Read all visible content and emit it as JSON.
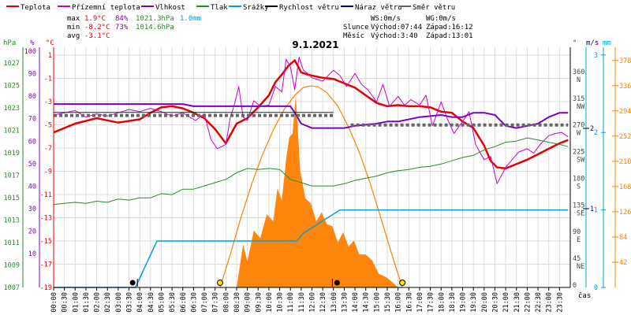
{
  "chart_data": {
    "type": "line",
    "title": "9.1.2021",
    "colors": {
      "temperature": "#e60000",
      "ground_temperature": "#cc00cc",
      "humidity": "#8000c0",
      "pressure": "#2a8a2a",
      "precipitation": "#00a0e0",
      "wind_speed": "#000000",
      "wind_gust": "#00008b",
      "wind_direction": "#666666",
      "solar": "#ff8000",
      "grid": "#dddddd"
    },
    "legend": [
      {
        "label": "Teplota",
        "color": "#e60000"
      },
      {
        "label": "Přízemní teplota",
        "color": "#cc00cc"
      },
      {
        "label": "Vlhkost",
        "color": "#8000c0"
      },
      {
        "label": "Tlak",
        "color": "#2a8a2a"
      },
      {
        "label": "Srážky",
        "color": "#00a0e0"
      },
      {
        "label": "Rychlost větru",
        "color": "#000000"
      },
      {
        "label": "Náraz větru",
        "color": "#00008b"
      },
      {
        "label": "Směr větru",
        "color": "#666666"
      }
    ],
    "stats": {
      "max": {
        "label": "max",
        "temp": "1.9°C",
        "hum": "84%",
        "press": "1021.3hPa",
        "rain": "1.0mm"
      },
      "min": {
        "label": "min",
        "temp": "-8.2°C",
        "hum": "73%",
        "press": "1014.6hPa"
      },
      "avg": {
        "label": "avg",
        "temp": "-3.1°C"
      }
    },
    "sun_info": {
      "ws": "WS:0m/s",
      "wg": "WG:0m/s",
      "sun_label": "Slunce",
      "sun_rise": "Východ:07:44",
      "sun_set": "Západ:16:12",
      "moon_label": "Měsíc",
      "moon_rise": "Východ:3:40",
      "moon_set": "Západ:13:01"
    },
    "axes": {
      "time_unit": "čas",
      "x_ticks": [
        "00:00",
        "00:30",
        "01:00",
        "01:30",
        "02:00",
        "02:30",
        "03:00",
        "03:30",
        "04:00",
        "04:30",
        "05:00",
        "05:30",
        "06:00",
        "06:30",
        "07:00",
        "07:30",
        "08:00",
        "08:30",
        "09:00",
        "09:30",
        "10:00",
        "10:30",
        "11:00",
        "11:30",
        "12:00",
        "12:30",
        "13:00",
        "13:30",
        "14:00",
        "14:30",
        "15:00",
        "15:30",
        "16:00",
        "16:30",
        "17:00",
        "17:30",
        "18:00",
        "18:30",
        "19:00",
        "19:30",
        "20:00",
        "20:30",
        "21:00",
        "21:30",
        "22:00",
        "22:30",
        "23:00",
        "23:30"
      ],
      "hpa": {
        "unit": "hPa",
        "ticks": [
          "1027",
          "1025",
          "1023",
          "1021",
          "1019",
          "1017",
          "1015",
          "1013",
          "1011",
          "1009",
          "1007"
        ]
      },
      "pct": {
        "unit": "%",
        "ticks": [
          "100",
          "90",
          "80",
          "70",
          "60",
          "50",
          "40",
          "30",
          "20",
          "10"
        ]
      },
      "degc": {
        "unit": "°C",
        "ticks": [
          "1",
          "-1",
          "-3",
          "-5",
          "-7",
          "-9",
          "-11",
          "-13",
          "-15",
          "-17",
          "-19"
        ]
      },
      "deg": {
        "unit": "°",
        "ticks": [
          "360",
          "315",
          "270",
          "225",
          "180",
          "135",
          "90",
          "45",
          "0"
        ],
        "dirs": [
          "N",
          "NW",
          "W",
          "SW",
          "S",
          "SE",
          "E",
          "NE"
        ]
      },
      "ms": {
        "unit": "m/s",
        "ticks": [
          "2",
          "1"
        ]
      },
      "mm": {
        "unit": "mm",
        "ticks": [
          "3",
          "2",
          "1",
          "0"
        ]
      },
      "wm2": {
        "ticks": [
          "378",
          "336",
          "294",
          "252",
          "210",
          "168",
          "126",
          "84",
          "42"
        ]
      },
      "temp_range": [
        -19,
        3
      ],
      "hum_range": [
        0,
        110
      ],
      "press_range": [
        1007,
        1029
      ],
      "rain_range": [
        0,
        3.1
      ],
      "dir_range": [
        0,
        405
      ],
      "solar_range": [
        0,
        400
      ]
    },
    "series": [
      {
        "key": "temperature",
        "color": "#e60000",
        "width": 2.5,
        "axis": "temp",
        "x": [
          0,
          1,
          2,
          3,
          4,
          4.5,
          5,
          5.5,
          6,
          6.5,
          7,
          7.5,
          8,
          8.5,
          9,
          9.5,
          10,
          10.3,
          10.6,
          10.9,
          11.2,
          11.5,
          11.8,
          12,
          12.5,
          13,
          13.5,
          14,
          14.5,
          15,
          15.5,
          16,
          16.5,
          17,
          17.5,
          18,
          18.5,
          19,
          19.5,
          20,
          20.3,
          20.6,
          21,
          21.5,
          22,
          22.5,
          23,
          23.5,
          23.9
        ],
        "y": [
          -4.8,
          -4.0,
          -3.5,
          -3.9,
          -3.6,
          -3.0,
          -2.5,
          -2.4,
          -2.6,
          -3.0,
          -3.5,
          -4.5,
          -5.8,
          -4.0,
          -3.5,
          -2.5,
          -1.4,
          -0.2,
          0.5,
          1.3,
          1.8,
          0.7,
          0.5,
          0.4,
          0.2,
          0.1,
          -0.3,
          -0.7,
          -1.4,
          -2.1,
          -2.4,
          -2.3,
          -2.4,
          -2.4,
          -2.5,
          -2.9,
          -3.0,
          -3.8,
          -4.4,
          -6.0,
          -7.4,
          -8.0,
          -8.1,
          -7.7,
          -7.3,
          -6.8,
          -6.3,
          -5.8,
          -5.5
        ]
      },
      {
        "key": "ground_temperature",
        "color": "#cc00cc",
        "width": 1,
        "axis": "temp",
        "x": [
          0,
          0.5,
          1,
          1.5,
          2,
          2.5,
          3,
          3.5,
          4,
          4.5,
          5,
          5.5,
          6,
          6.3,
          6.6,
          7,
          7.3,
          7.6,
          8,
          8.2,
          8.4,
          8.6,
          8.8,
          9,
          9.3,
          9.6,
          10,
          10.3,
          10.6,
          10.8,
          11,
          11.2,
          11.4,
          11.6,
          11.8,
          12,
          12.5,
          13,
          13.3,
          13.6,
          14,
          14.3,
          14.6,
          15,
          15.3,
          15.6,
          16,
          16.3,
          16.6,
          17,
          17.3,
          17.6,
          18,
          18.3,
          18.6,
          19,
          19.3,
          19.6,
          20,
          20.3,
          20.6,
          21,
          21.3,
          21.6,
          22,
          22.3,
          22.6,
          23,
          23.3,
          23.6,
          23.9
        ],
        "y": [
          -3.2,
          -3.0,
          -2.8,
          -3.4,
          -3.1,
          -3.3,
          -3.0,
          -2.7,
          -2.9,
          -2.6,
          -2.9,
          -3.3,
          -3.0,
          -3.4,
          -3.7,
          -3.1,
          -5.4,
          -6.3,
          -5.9,
          -3.5,
          -2.2,
          -0.6,
          -3.4,
          -3.7,
          -1.9,
          -2.4,
          -2.3,
          -0.6,
          -1.1,
          1.9,
          1.2,
          -0.9,
          2.1,
          0.9,
          0.6,
          0.2,
          -0.1,
          0.9,
          0.4,
          -0.6,
          0.6,
          -0.4,
          -0.9,
          -2.0,
          -0.4,
          -2.4,
          -1.5,
          -2.3,
          -1.8,
          -2.3,
          -1.4,
          -4.2,
          -2.0,
          -3.6,
          -4.9,
          -3.8,
          -2.9,
          -5.9,
          -7.3,
          -7.0,
          -9.5,
          -8.0,
          -7.3,
          -6.6,
          -6.3,
          -6.7,
          -5.9,
          -5.1,
          -4.9,
          -4.8,
          -5.2
        ]
      },
      {
        "key": "humidity",
        "color": "#8000c0",
        "width": 2,
        "axis": "hum",
        "x": [
          0,
          6,
          6.5,
          7,
          7.5,
          8,
          9,
          10,
          11,
          11.2,
          11.5,
          12,
          12.5,
          13,
          13.5,
          14,
          15,
          15.5,
          16,
          17,
          18,
          18.5,
          19,
          19.5,
          20,
          20.5,
          21,
          21.5,
          22,
          22.5,
          23,
          23.5,
          23.9
        ],
        "y": [
          84,
          84,
          83,
          83,
          83,
          83,
          83,
          83,
          83,
          80,
          75,
          73,
          73,
          73,
          73,
          74,
          75,
          76,
          76,
          78,
          79,
          78,
          78,
          80,
          80,
          79,
          74,
          73,
          74,
          75,
          78,
          80,
          80
        ]
      },
      {
        "key": "pressure",
        "color": "#2a8a2a",
        "width": 1,
        "axis": "press",
        "x": [
          0,
          1,
          1.5,
          2,
          2.5,
          3,
          3.5,
          4,
          4.5,
          5,
          5.5,
          6,
          6.5,
          7,
          7.5,
          8,
          8.5,
          9,
          9.5,
          10,
          10.5,
          11,
          11.5,
          12,
          12.5,
          13,
          13.5,
          14,
          14.5,
          15,
          15.5,
          16,
          16.5,
          17,
          17.5,
          18,
          18.5,
          19,
          19.5,
          20,
          20.5,
          21,
          21.5,
          22,
          22.5,
          23,
          23.5,
          23.9
        ],
        "y": [
          1014.6,
          1014.8,
          1014.7,
          1014.9,
          1014.8,
          1015.1,
          1015.0,
          1015.2,
          1015.2,
          1015.6,
          1015.5,
          1016.0,
          1016.0,
          1016.3,
          1016.6,
          1016.9,
          1017.5,
          1017.9,
          1017.8,
          1017.9,
          1017.8,
          1016.9,
          1016.6,
          1016.3,
          1016.3,
          1016.3,
          1016.5,
          1016.8,
          1017.0,
          1017.2,
          1017.5,
          1017.7,
          1017.8,
          1018.0,
          1018.1,
          1018.3,
          1018.6,
          1018.9,
          1019.1,
          1019.6,
          1019.9,
          1020.3,
          1020.4,
          1020.7,
          1020.5,
          1020.3,
          1020.1,
          1019.9
        ]
      },
      {
        "key": "precipitation",
        "color": "#00a0e0",
        "width": 1.5,
        "axis": "rain",
        "step": true,
        "x": [
          0,
          3.8,
          4.8,
          5.3,
          11.3,
          11.6,
          13.3,
          23.9
        ],
        "y": [
          0,
          0,
          0.6,
          0.6,
          0.6,
          0.7,
          1.0,
          1.0
        ]
      },
      {
        "key": "wind_direction",
        "color": "#666666",
        "width": 4,
        "dash": "4,3",
        "axis": "dir",
        "x": [
          0,
          13.0
        ],
        "y": [
          290,
          290
        ]
      },
      {
        "key": "wind_direction_2",
        "color": "#666666",
        "width": 4,
        "dash": "4,3",
        "axis": "dir",
        "x": [
          13.8,
          23.9
        ],
        "y": [
          274,
          274
        ]
      },
      {
        "key": "wind_direction_top",
        "color": "#222222",
        "width": 1,
        "axis": "dir",
        "x": [
          0,
          13.0
        ],
        "y": [
          295,
          295
        ]
      },
      {
        "key": "wind_gust",
        "color": "#00008b",
        "width": 0.8,
        "axis": "temp",
        "x": [
          0,
          23.9
        ],
        "y": [
          -19,
          -19
        ]
      }
    ],
    "solar_area": {
      "color": "#ff8000",
      "x": [
        8.5,
        8.8,
        9.0,
        9.3,
        9.6,
        9.9,
        10.2,
        10.4,
        10.6,
        10.8,
        10.95,
        11.1,
        11.25,
        11.45,
        11.7,
        11.95,
        12.2,
        12.45,
        12.7,
        12.95,
        13.2,
        13.45,
        13.7,
        13.95,
        14.2,
        14.5,
        14.8,
        15.1,
        15.4,
        15.7,
        16.0
      ],
      "y": [
        0,
        72,
        43,
        95,
        82,
        122,
        110,
        165,
        145,
        214,
        250,
        256,
        320,
        195,
        148,
        140,
        110,
        125,
        105,
        102,
        75,
        92,
        68,
        78,
        55,
        55,
        45,
        23,
        18,
        10,
        0
      ]
    },
    "solar_theory": {
      "color": "#ff8000",
      "x": [
        7.73,
        8.2,
        8.7,
        9.2,
        9.7,
        10.2,
        10.7,
        11.2,
        11.6,
        11.95,
        12.3,
        12.7,
        13.2,
        13.7,
        14.2,
        14.7,
        15.2,
        15.7,
        16.2
      ],
      "y": [
        0,
        54,
        116,
        172,
        221,
        262,
        296,
        320,
        333,
        336,
        334,
        324,
        302,
        267,
        225,
        174,
        116,
        56,
        0
      ]
    },
    "markers": {
      "sunrise_hour": 7.73,
      "sunset_hour": 16.2,
      "moonrise_hour": 3.67,
      "moonset_hour": 13.02
    }
  }
}
